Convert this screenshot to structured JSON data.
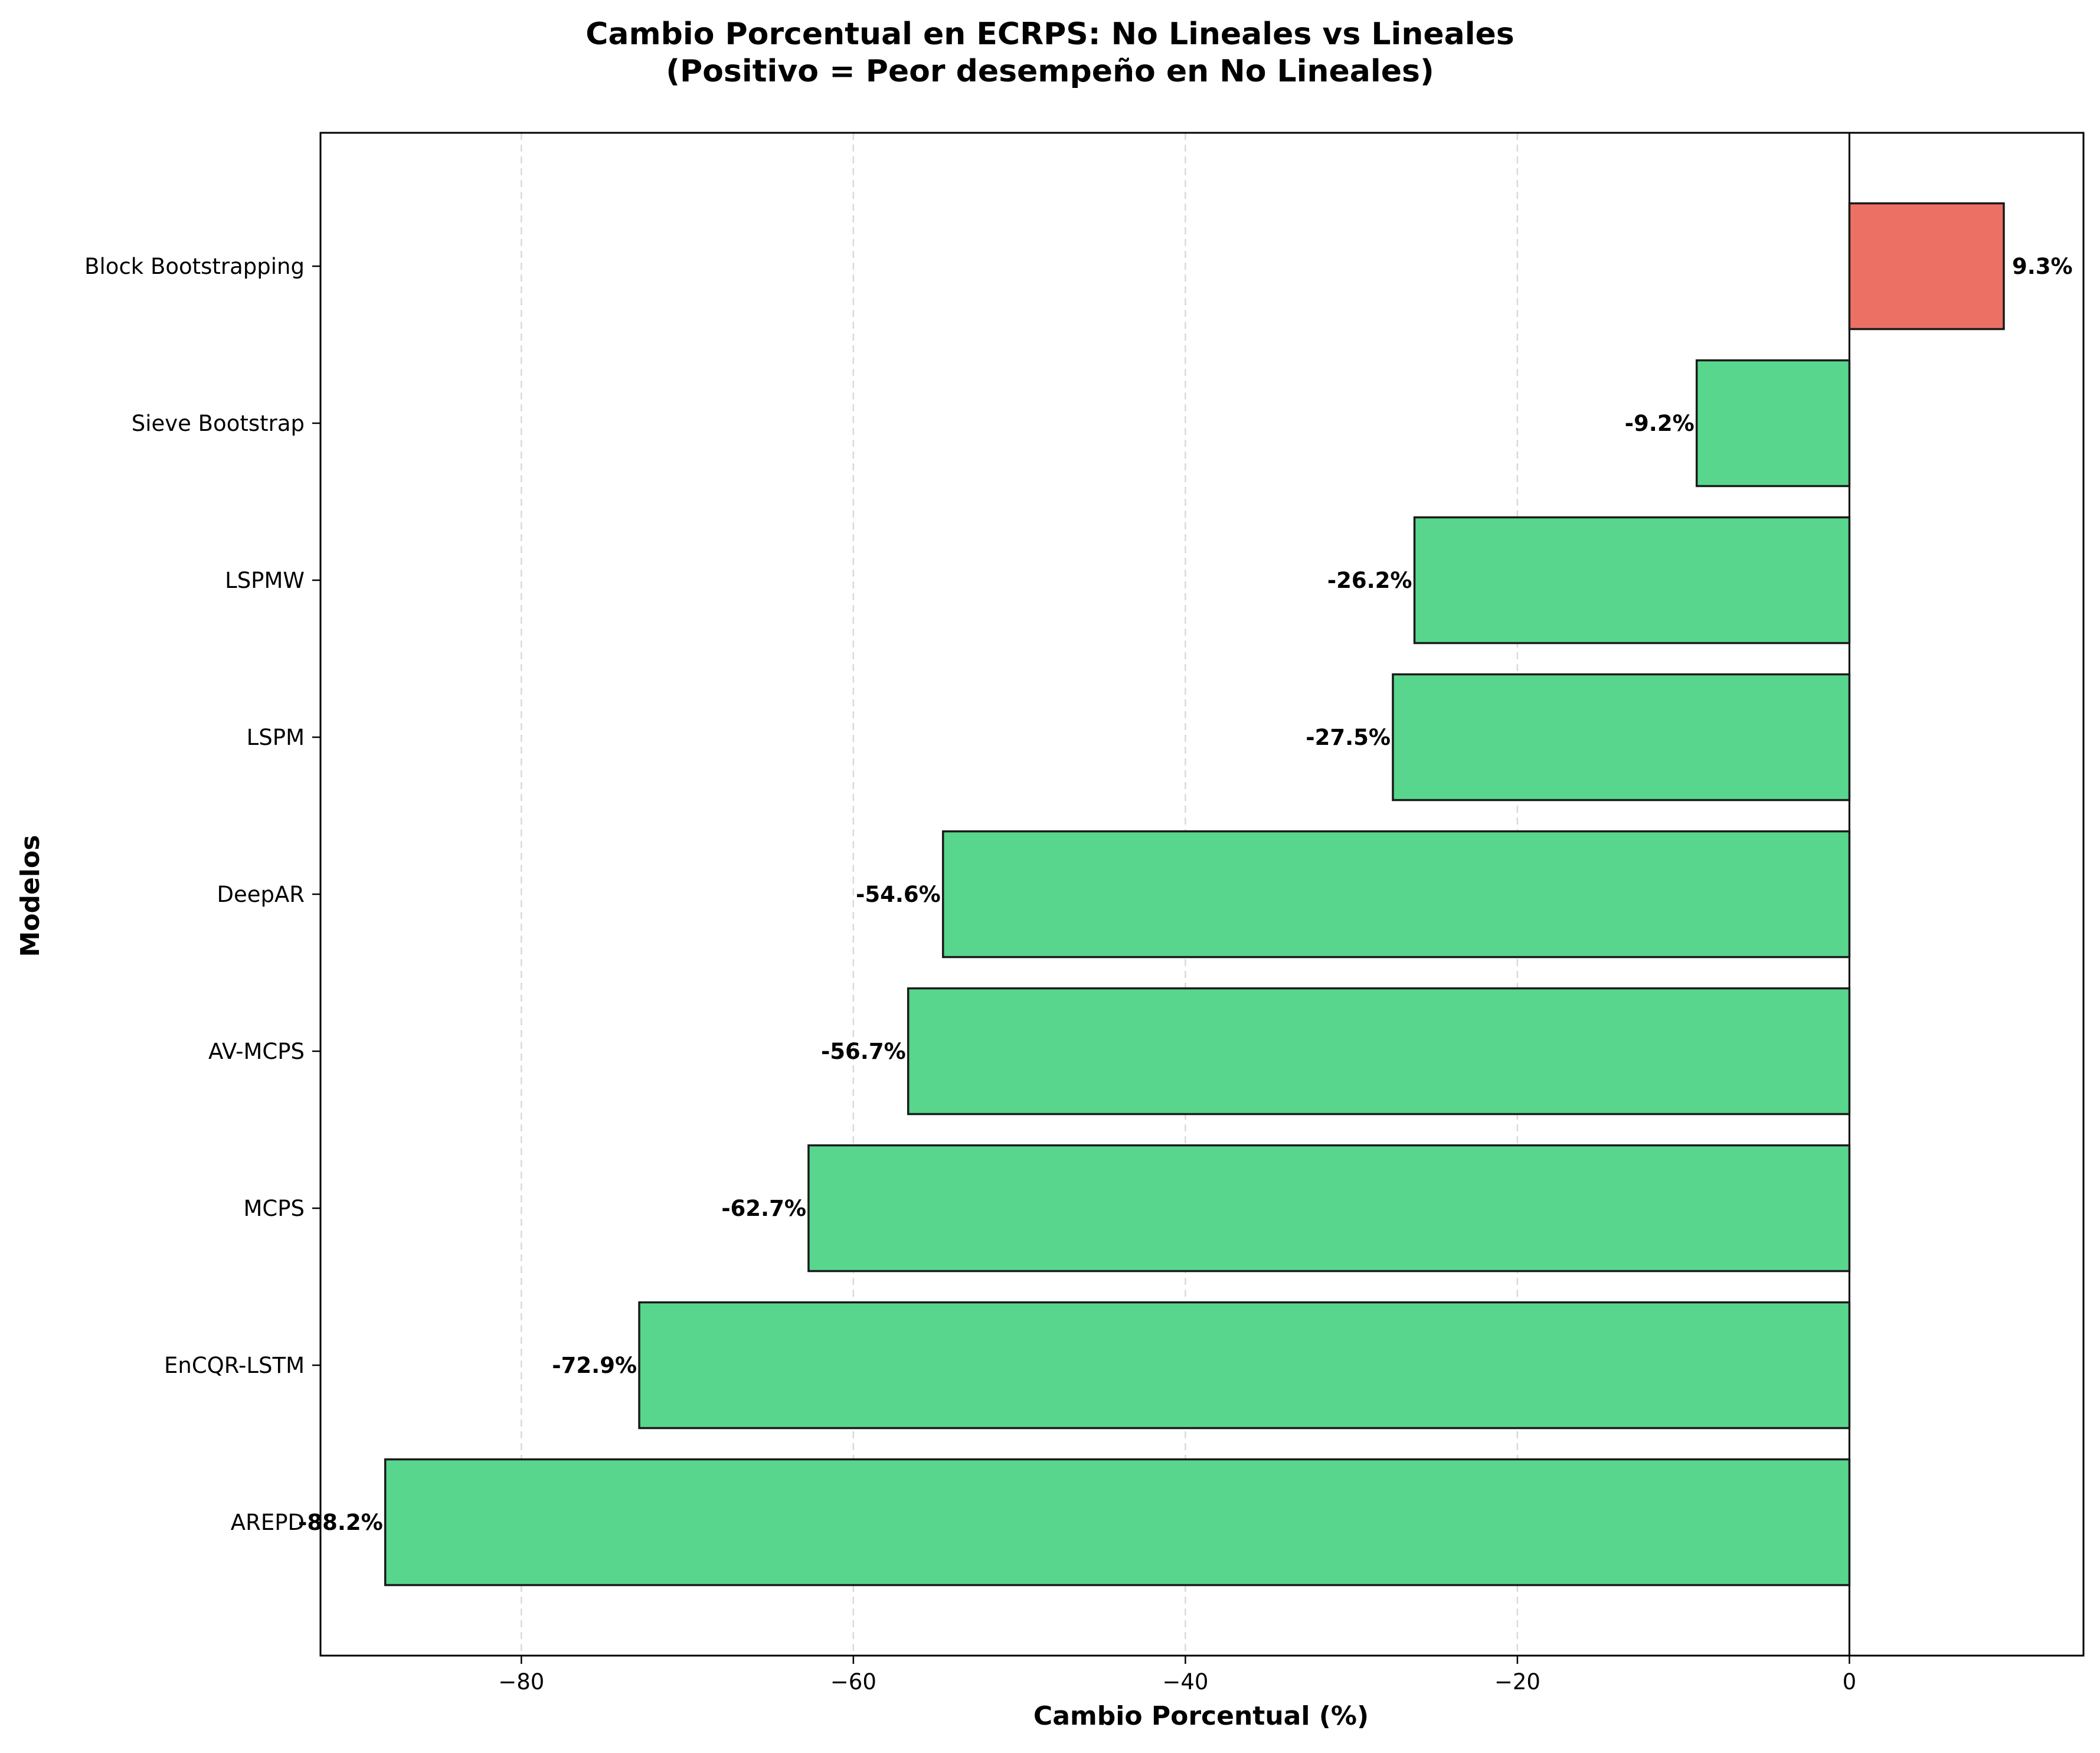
{
  "chart_data": {
    "type": "bar",
    "orientation": "horizontal",
    "title_lines": [
      "Cambio Porcentual en ECRPS: No Lineales vs Lineales",
      "(Positivo = Peor desempeño en No Lineales)"
    ],
    "xlabel": "Cambio Porcentual (%)",
    "ylabel": "Modelos",
    "xlim": [
      -92.1,
      14.1
    ],
    "xticks": [
      -80,
      -60,
      -40,
      -20,
      0
    ],
    "xtick_labels": [
      "−80",
      "−60",
      "−40",
      "−20",
      "0"
    ],
    "grid": "vertical dashed",
    "categories": [
      "Block Bootstrapping",
      "Sieve Bootstrap",
      "LSPMW",
      "LSPM",
      "DeepAR",
      "AV-MCPS",
      "MCPS",
      "EnCQR-LSTM",
      "AREPD"
    ],
    "values": [
      9.3,
      -9.2,
      -26.2,
      -27.5,
      -54.6,
      -56.7,
      -62.7,
      -72.9,
      -88.2
    ],
    "value_labels": [
      "9.3%",
      "-9.2%",
      "-26.2%",
      "-27.5%",
      "-54.6%",
      "-56.7%",
      "-62.7%",
      "-72.9%",
      "-88.2%"
    ],
    "colors": {
      "positive": "#ec7063",
      "negative": "#58d68d",
      "edge": "#1a1a1a",
      "grid": "#d9d9d9"
    }
  }
}
